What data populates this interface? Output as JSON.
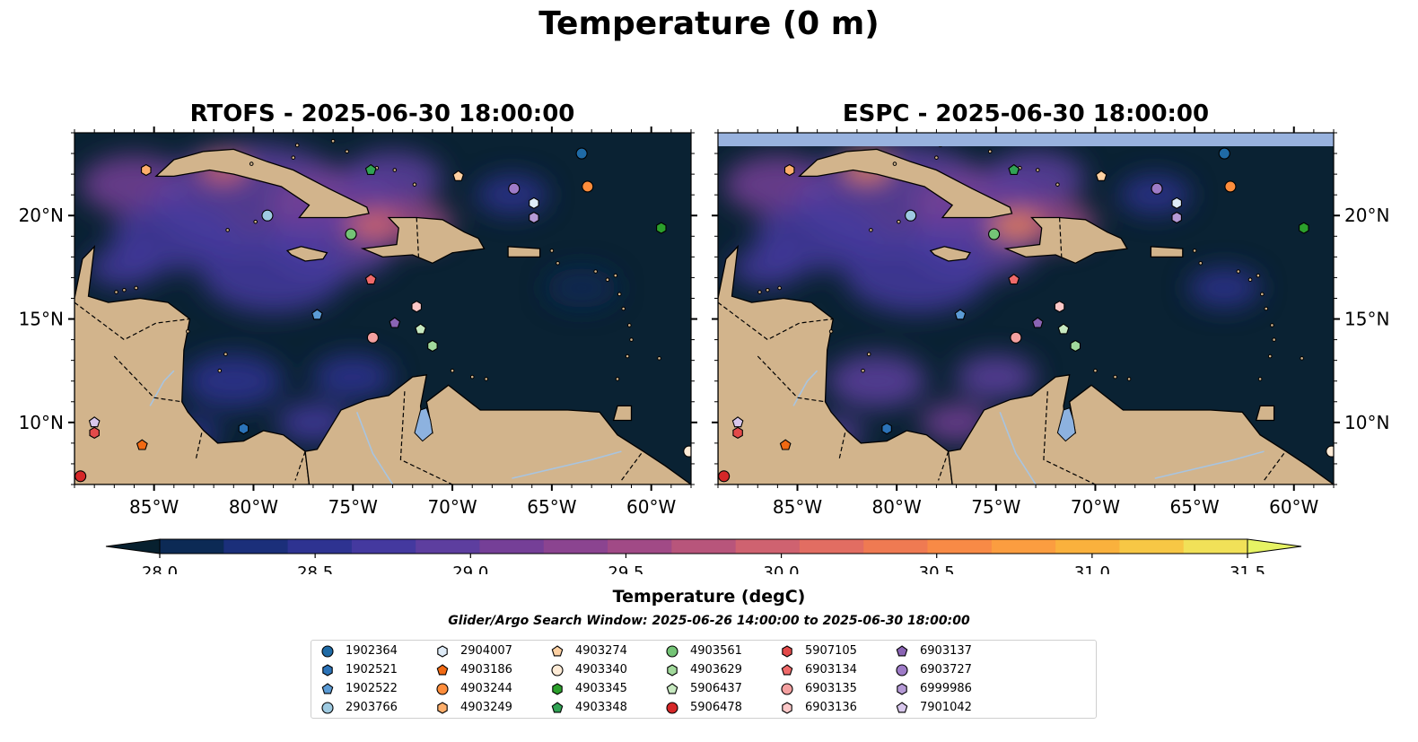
{
  "figure": {
    "suptitle": "Temperature (0 m)",
    "search_window": "Glider/Argo Search Window: 2025-06-26 14:00:00 to 2025-06-30 18:00:00"
  },
  "colors": {
    "ocean_cold": "#0a2233",
    "land": "#d2b48c",
    "lake": "#8db2df",
    "missing_band": "#98b2de",
    "river": "#a8c4e0",
    "colormap": [
      "#07202f",
      "#0c2a55",
      "#1b2f7a",
      "#2e3391",
      "#44399f",
      "#5d3e9f",
      "#753f97",
      "#8b4490",
      "#a14a86",
      "#b8557b",
      "#cf6270",
      "#e26d62",
      "#ef7a52",
      "#f88a46",
      "#fb9d40",
      "#fab13d",
      "#f7c745",
      "#f1e158",
      "#e6f364"
    ]
  },
  "chart_data": [
    {
      "type": "heatmap",
      "title": "RTOFS - 2025-06-30 18:00:00",
      "xlim": [
        -89,
        -58
      ],
      "ylim": [
        7,
        24
      ],
      "xticks": [
        "85°W",
        "80°W",
        "75°W",
        "70°W",
        "65°W",
        "60°W"
      ],
      "yticks": [
        "20°N",
        "15°N",
        "10°N"
      ]
    },
    {
      "type": "heatmap",
      "title": "ESPC - 2025-06-30 18:00:00",
      "xlim": [
        -89,
        -58
      ],
      "ylim": [
        7,
        24
      ],
      "xticks": [
        "85°W",
        "80°W",
        "75°W",
        "70°W",
        "65°W",
        "60°W"
      ],
      "yticks": [
        "20°N",
        "15°N",
        "10°N"
      ]
    }
  ],
  "colorbar": {
    "label": "Temperature (degC)",
    "vmin": 28.0,
    "vmax": 31.5,
    "ticks": [
      "28.0",
      "28.5",
      "29.0",
      "29.5",
      "30.0",
      "30.5",
      "31.0",
      "31.5"
    ],
    "extend": "both"
  },
  "floats": [
    {
      "id": "1902364",
      "marker": "circle",
      "color": "#1f6aa5",
      "lon": -63.5,
      "lat": 23.0
    },
    {
      "id": "1902521",
      "marker": "hexagon",
      "color": "#2b73b8",
      "lon": -80.5,
      "lat": 9.7
    },
    {
      "id": "1902522",
      "marker": "pentagon",
      "color": "#5b9bd5",
      "lon": -76.8,
      "lat": 15.2
    },
    {
      "id": "2903766",
      "marker": "circle",
      "color": "#9ecae1",
      "lon": -79.3,
      "lat": 20.0
    },
    {
      "id": "2904007",
      "marker": "hexagon",
      "color": "#deebf7",
      "lon": -65.9,
      "lat": 20.6
    },
    {
      "id": "4903186",
      "marker": "pentagon",
      "color": "#f16913",
      "lon": -85.6,
      "lat": 8.9
    },
    {
      "id": "4903244",
      "marker": "circle",
      "color": "#fd8d3c",
      "lon": -63.2,
      "lat": 21.4
    },
    {
      "id": "4903249",
      "marker": "hexagon",
      "color": "#fdae6b",
      "lon": -85.4,
      "lat": 22.2
    },
    {
      "id": "4903274",
      "marker": "pentagon",
      "color": "#fdd0a2",
      "lon": -69.7,
      "lat": 21.9
    },
    {
      "id": "4903340",
      "marker": "circle",
      "color": "#feebd6",
      "lon": -58.1,
      "lat": 8.6
    },
    {
      "id": "4903345",
      "marker": "hexagon",
      "color": "#2ca02c",
      "lon": -59.5,
      "lat": 19.4
    },
    {
      "id": "4903348",
      "marker": "pentagon",
      "color": "#31a354",
      "lon": -74.1,
      "lat": 22.2
    },
    {
      "id": "4903561",
      "marker": "circle",
      "color": "#74c476",
      "lon": -75.1,
      "lat": 19.1
    },
    {
      "id": "4903629",
      "marker": "hexagon",
      "color": "#a1d99b",
      "lon": -71.0,
      "lat": 13.7
    },
    {
      "id": "5906437",
      "marker": "pentagon",
      "color": "#c7e9c0",
      "lon": -71.6,
      "lat": 14.5
    },
    {
      "id": "5906478",
      "marker": "circle",
      "color": "#d62728",
      "lon": -88.7,
      "lat": 7.4
    },
    {
      "id": "5907105",
      "marker": "hexagon",
      "color": "#e34a4a",
      "lon": -88.0,
      "lat": 9.5
    },
    {
      "id": "6903134",
      "marker": "pentagon",
      "color": "#f06a6a",
      "lon": -74.1,
      "lat": 16.9
    },
    {
      "id": "6903135",
      "marker": "circle",
      "color": "#f4a0a0",
      "lon": -74.0,
      "lat": 14.1
    },
    {
      "id": "6903136",
      "marker": "hexagon",
      "color": "#fcc8c8",
      "lon": -71.8,
      "lat": 15.6
    },
    {
      "id": "6903137",
      "marker": "pentagon",
      "color": "#8a64b4",
      "lon": -72.9,
      "lat": 14.8
    },
    {
      "id": "6903727",
      "marker": "circle",
      "color": "#9e7bc7",
      "lon": -66.9,
      "lat": 21.3
    },
    {
      "id": "6999986",
      "marker": "hexagon",
      "color": "#b59ad6",
      "lon": -65.9,
      "lat": 19.9
    },
    {
      "id": "7901042",
      "marker": "pentagon",
      "color": "#d8c7ec",
      "lon": -88.0,
      "lat": 10.0
    }
  ]
}
